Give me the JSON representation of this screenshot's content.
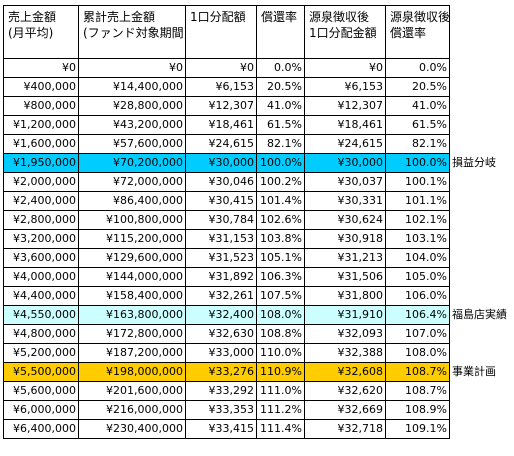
{
  "headers": [
    [
      "売上金額",
      "(月平均)"
    ],
    [
      "累計売上金額",
      "(ファンド対象期間)"
    ],
    [
      "1口分配額"
    ],
    [
      "償還率"
    ],
    [
      "源泉徴収後",
      "1口分配金額"
    ],
    [
      "源泉徴収後",
      "償還率"
    ]
  ],
  "colors": {
    "breakeven": "#00ccff",
    "fukushima": "#ccffff",
    "plan": "#ffcc00"
  },
  "rows": [
    {
      "cells": [
        "¥0",
        "¥0",
        "¥0",
        "0.0%",
        "¥0",
        "0.0%"
      ],
      "highlight": null,
      "note": ""
    },
    {
      "cells": [
        "¥400,000",
        "¥14,400,000",
        "¥6,153",
        "20.5%",
        "¥6,153",
        "20.5%"
      ],
      "highlight": null,
      "note": ""
    },
    {
      "cells": [
        "¥800,000",
        "¥28,800,000",
        "¥12,307",
        "41.0%",
        "¥12,307",
        "41.0%"
      ],
      "highlight": null,
      "note": ""
    },
    {
      "cells": [
        "¥1,200,000",
        "¥43,200,000",
        "¥18,461",
        "61.5%",
        "¥18,461",
        "61.5%"
      ],
      "highlight": null,
      "note": ""
    },
    {
      "cells": [
        "¥1,600,000",
        "¥57,600,000",
        "¥24,615",
        "82.1%",
        "¥24,615",
        "82.1%"
      ],
      "highlight": null,
      "note": ""
    },
    {
      "cells": [
        "¥1,950,000",
        "¥70,200,000",
        "¥30,000",
        "100.0%",
        "¥30,000",
        "100.0%"
      ],
      "highlight": "breakeven",
      "note": "損益分岐"
    },
    {
      "cells": [
        "¥2,000,000",
        "¥72,000,000",
        "¥30,046",
        "100.2%",
        "¥30,037",
        "100.1%"
      ],
      "highlight": null,
      "note": ""
    },
    {
      "cells": [
        "¥2,400,000",
        "¥86,400,000",
        "¥30,415",
        "101.4%",
        "¥30,331",
        "101.1%"
      ],
      "highlight": null,
      "note": ""
    },
    {
      "cells": [
        "¥2,800,000",
        "¥100,800,000",
        "¥30,784",
        "102.6%",
        "¥30,624",
        "102.1%"
      ],
      "highlight": null,
      "note": ""
    },
    {
      "cells": [
        "¥3,200,000",
        "¥115,200,000",
        "¥31,153",
        "103.8%",
        "¥30,918",
        "103.1%"
      ],
      "highlight": null,
      "note": ""
    },
    {
      "cells": [
        "¥3,600,000",
        "¥129,600,000",
        "¥31,523",
        "105.1%",
        "¥31,213",
        "104.0%"
      ],
      "highlight": null,
      "note": ""
    },
    {
      "cells": [
        "¥4,000,000",
        "¥144,000,000",
        "¥31,892",
        "106.3%",
        "¥31,506",
        "105.0%"
      ],
      "highlight": null,
      "note": ""
    },
    {
      "cells": [
        "¥4,400,000",
        "¥158,400,000",
        "¥32,261",
        "107.5%",
        "¥31,800",
        "106.0%"
      ],
      "highlight": null,
      "note": ""
    },
    {
      "cells": [
        "¥4,550,000",
        "¥163,800,000",
        "¥32,400",
        "108.0%",
        "¥31,910",
        "106.4%"
      ],
      "highlight": "fukushima",
      "note": "福島店実績"
    },
    {
      "cells": [
        "¥4,800,000",
        "¥172,800,000",
        "¥32,630",
        "108.8%",
        "¥32,093",
        "107.0%"
      ],
      "highlight": null,
      "note": ""
    },
    {
      "cells": [
        "¥5,200,000",
        "¥187,200,000",
        "¥33,000",
        "110.0%",
        "¥32,388",
        "108.0%"
      ],
      "highlight": null,
      "note": ""
    },
    {
      "cells": [
        "¥5,500,000",
        "¥198,000,000",
        "¥33,276",
        "110.9%",
        "¥32,608",
        "108.7%"
      ],
      "highlight": "plan",
      "note": "事業計画"
    },
    {
      "cells": [
        "¥5,600,000",
        "¥201,600,000",
        "¥33,292",
        "111.0%",
        "¥32,620",
        "108.7%"
      ],
      "highlight": null,
      "note": ""
    },
    {
      "cells": [
        "¥6,000,000",
        "¥216,000,000",
        "¥33,353",
        "111.2%",
        "¥32,669",
        "108.9%"
      ],
      "highlight": null,
      "note": ""
    },
    {
      "cells": [
        "¥6,400,000",
        "¥230,400,000",
        "¥33,415",
        "111.4%",
        "¥32,718",
        "109.1%"
      ],
      "highlight": null,
      "note": ""
    }
  ]
}
